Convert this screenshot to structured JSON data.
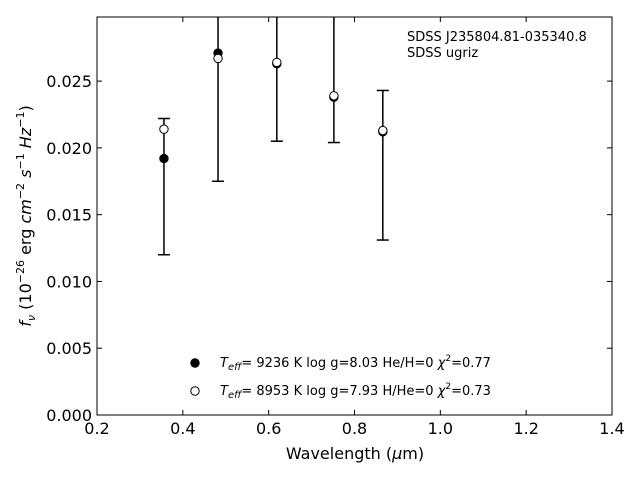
{
  "chart_data": {
    "type": "scatter",
    "xlabel_prefix": "Wavelength (",
    "xlabel_unit_symbol": "μ",
    "xlabel_suffix": "m)",
    "ylabel": "f_ν (10^−26 erg cm^−2 s^−1 Hz^−1)",
    "xlim": [
      0.2,
      1.4
    ],
    "ylim": [
      0.0,
      0.0298
    ],
    "xticks": [
      "0.2",
      "0.4",
      "0.6",
      "0.8",
      "1.0",
      "1.2",
      "1.4"
    ],
    "yticks": [
      "0.000",
      "0.005",
      "0.010",
      "0.015",
      "0.020",
      "0.025"
    ],
    "annotation_lines": [
      "SDSS J235804.81-035340.8",
      "SDSS ugriz"
    ],
    "observed": {
      "x": [
        0.356,
        0.482,
        0.619,
        0.752,
        0.866
      ],
      "y": [
        0.0192,
        0.0271,
        0.0263,
        0.0238,
        0.0212
      ],
      "err_low": [
        0.012,
        0.0175,
        0.0205,
        0.0204,
        0.0131
      ],
      "err_high": [
        0.0222,
        0.0298,
        0.0298,
        0.0298,
        0.0243
      ]
    },
    "series": [
      {
        "marker": "filled",
        "teff": "9236 K",
        "logg": "log g=8.03",
        "comp": "He/H=0",
        "chi2": "=0.77",
        "x": [
          0.356,
          0.482,
          0.619,
          0.752,
          0.866
        ],
        "y": [
          0.0192,
          0.0271,
          0.0263,
          0.0238,
          0.0212
        ]
      },
      {
        "marker": "open",
        "teff": "8953 K",
        "logg": "log g=7.93",
        "comp": "H/He=0",
        "chi2": "=0.73",
        "x": [
          0.356,
          0.482,
          0.619,
          0.752,
          0.866
        ],
        "y": [
          0.0214,
          0.0267,
          0.0264,
          0.0239,
          0.0213
        ]
      }
    ]
  }
}
